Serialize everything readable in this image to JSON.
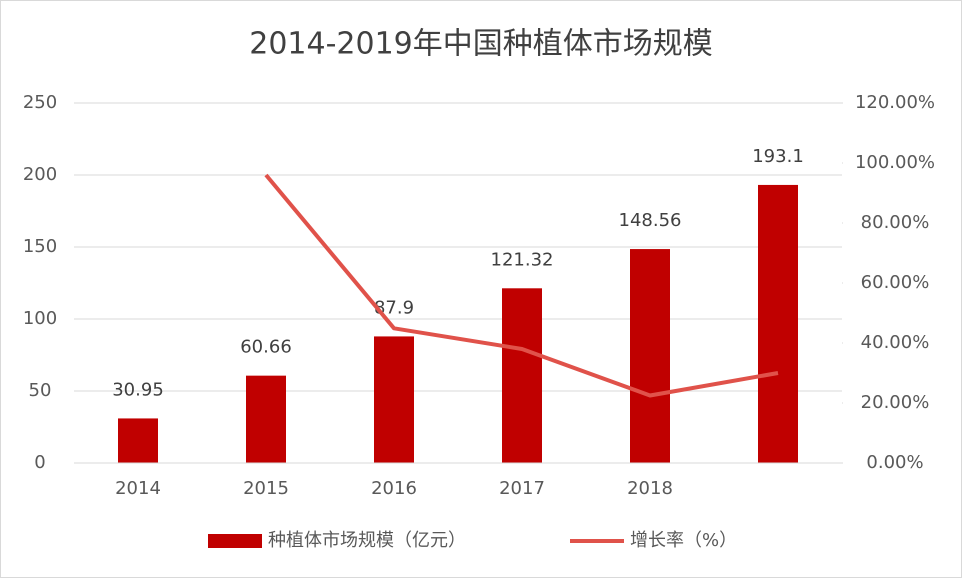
{
  "chart_data": {
    "type": "bar",
    "title": "2014-2019年中国种植体市场规模",
    "categories": [
      "2014",
      "2015",
      "2016",
      "2017",
      "2018",
      null
    ],
    "series": [
      {
        "name": "种植体市场规模（亿元）",
        "type": "bar",
        "color": "#c00000",
        "values": [
          30.95,
          60.66,
          87.9,
          121.32,
          148.56,
          193.1
        ]
      },
      {
        "name": "增长率（%）",
        "type": "line",
        "axis": "y2",
        "color": "#e0524a",
        "values": [
          null,
          96.0,
          44.9,
          38.0,
          22.5,
          30.0
        ]
      }
    ],
    "ylim": [
      0,
      250
    ],
    "yticks": [
      0,
      50,
      100,
      150,
      200,
      250
    ],
    "y2lim": [
      0,
      120
    ],
    "y2ticks": [
      {
        "value": 0,
        "label": "0.00%"
      },
      {
        "value": 20,
        "label": "20.00%"
      },
      {
        "value": 40,
        "label": "40.00%"
      },
      {
        "value": 60,
        "label": "60.00%"
      },
      {
        "value": 80,
        "label": "80.00%"
      },
      {
        "value": 100,
        "label": "100.00%"
      },
      {
        "value": 120,
        "label": "120.00%"
      }
    ],
    "grid": true,
    "legend": "bottom"
  }
}
